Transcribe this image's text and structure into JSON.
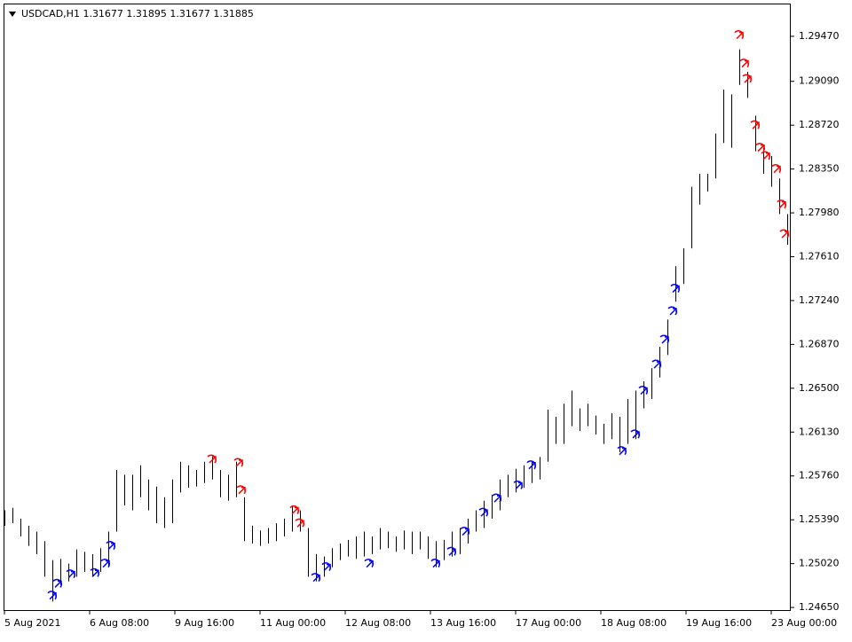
{
  "chart_data": {
    "type": "ohlc",
    "title": "USDCAD,H1  1.31677 1.31895 1.31677 1.31885",
    "color": "#000000",
    "xlim": [
      0,
      295
    ],
    "xticks": [
      {
        "value": 0,
        "label": "5 Aug 2021"
      },
      {
        "value": 32,
        "label": "6 Aug 08:00"
      },
      {
        "value": 64,
        "label": "9 Aug 16:00"
      },
      {
        "value": 96,
        "label": "11 Aug 00:00"
      },
      {
        "value": 128,
        "label": "12 Aug 08:00"
      },
      {
        "value": 160,
        "label": "13 Aug 16:00"
      },
      {
        "value": 192,
        "label": "17 Aug 00:00"
      },
      {
        "value": 224,
        "label": "18 Aug 08:00"
      },
      {
        "value": 256,
        "label": "19 Aug 16:00"
      },
      {
        "value": 288,
        "label": "23 Aug 00:00"
      }
    ],
    "ylim": [
      1.24628,
      1.29739
    ],
    "yticks": [
      {
        "value": 1.2465,
        "label": "1.24650"
      },
      {
        "value": 1.2502,
        "label": "1.25020"
      },
      {
        "value": 1.2539,
        "label": "1.25390"
      },
      {
        "value": 1.2576,
        "label": "1.25760"
      },
      {
        "value": 1.2613,
        "label": "1.26130"
      },
      {
        "value": 1.265,
        "label": "1.26500"
      },
      {
        "value": 1.2687,
        "label": "1.26870"
      },
      {
        "value": 1.2724,
        "label": "1.27240"
      },
      {
        "value": 1.2761,
        "label": "1.27610"
      },
      {
        "value": 1.2798,
        "label": "1.27980"
      },
      {
        "value": 1.2835,
        "label": "1.28350"
      },
      {
        "value": 1.2872,
        "label": "1.28720"
      },
      {
        "value": 1.2909,
        "label": "1.29090"
      },
      {
        "value": 1.2947,
        "label": "1.29470"
      }
    ],
    "x": [
      0,
      3,
      6,
      9,
      12,
      15,
      18,
      21,
      24,
      27,
      30,
      33,
      36,
      39,
      42,
      45,
      48,
      51,
      54,
      57,
      60,
      63,
      66,
      69,
      72,
      75,
      78,
      81,
      84,
      87,
      90,
      93,
      96,
      99,
      102,
      105,
      108,
      111,
      114,
      117,
      120,
      123,
      126,
      129,
      132,
      135,
      138,
      141,
      144,
      147,
      150,
      153,
      156,
      159,
      162,
      165,
      168,
      171,
      174,
      177,
      180,
      183,
      186,
      189,
      192,
      195,
      198,
      201,
      204,
      207,
      210,
      213,
      216,
      219,
      222,
      225,
      228,
      231,
      234,
      237,
      240,
      243,
      246,
      249,
      252,
      255,
      258,
      261,
      264,
      267,
      270,
      273,
      276,
      279,
      282,
      285,
      288,
      291,
      294
    ],
    "high": [
      1.2547,
      1.2549,
      1.254,
      1.2534,
      1.2529,
      1.2521,
      1.2505,
      1.2506,
      1.2502,
      1.2514,
      1.2512,
      1.251,
      1.2515,
      1.2529,
      1.2581,
      1.2577,
      1.2577,
      1.2585,
      1.2573,
      1.2567,
      1.2558,
      1.2573,
      1.2588,
      1.2585,
      1.2581,
      1.2588,
      1.2592,
      1.2581,
      1.2577,
      1.2588,
      1.2558,
      1.2534,
      1.253,
      1.2532,
      1.2536,
      1.254,
      1.2551,
      1.2547,
      1.2532,
      1.251,
      1.2508,
      1.2515,
      1.2519,
      1.2522,
      1.2525,
      1.2529,
      1.2525,
      1.2532,
      1.2529,
      1.2525,
      1.253,
      1.2529,
      1.2529,
      1.2525,
      1.2521,
      1.2522,
      1.2529,
      1.2532,
      1.254,
      1.2547,
      1.2555,
      1.256,
      1.2573,
      1.2577,
      1.2582,
      1.2585,
      1.2588,
      1.2592,
      1.2632,
      1.2626,
      1.2637,
      1.2648,
      1.2633,
      1.2637,
      1.2627,
      1.262,
      1.2629,
      1.2626,
      1.2641,
      1.2648,
      1.2656,
      1.2667,
      1.2685,
      1.2708,
      1.2753,
      1.2768,
      1.282,
      1.2831,
      1.2831,
      1.2865,
      1.2902,
      1.2898,
      1.2936,
      1.2917,
      1.288,
      1.2853,
      1.2846,
      1.2827,
      1.2797
    ],
    "low": [
      1.2534,
      1.2536,
      1.2525,
      1.2517,
      1.251,
      1.2491,
      1.247,
      1.2484,
      1.2487,
      1.2491,
      1.2495,
      1.2491,
      1.2495,
      1.2499,
      1.2529,
      1.2551,
      1.2547,
      1.2558,
      1.2547,
      1.2536,
      1.2532,
      1.2536,
      1.2562,
      1.2566,
      1.2567,
      1.257,
      1.2573,
      1.2558,
      1.2555,
      1.2558,
      1.2521,
      1.2519,
      1.2517,
      1.2519,
      1.2521,
      1.2525,
      1.2529,
      1.2529,
      1.2491,
      1.2487,
      1.2491,
      1.2499,
      1.2505,
      1.2508,
      1.2506,
      1.2508,
      1.251,
      1.2514,
      1.2515,
      1.2512,
      1.2514,
      1.251,
      1.2514,
      1.2506,
      1.2499,
      1.2505,
      1.2508,
      1.251,
      1.2519,
      1.2529,
      1.2532,
      1.254,
      1.2547,
      1.2558,
      1.2562,
      1.2566,
      1.257,
      1.2573,
      1.2588,
      1.2603,
      1.2603,
      1.2618,
      1.2614,
      1.2618,
      1.2611,
      1.2603,
      1.2607,
      1.2596,
      1.2603,
      1.2607,
      1.2633,
      1.2641,
      1.2659,
      1.2678,
      1.2723,
      1.2738,
      1.2768,
      1.2805,
      1.2816,
      1.2827,
      1.2857,
      1.2853,
      1.2906,
      1.2895,
      1.285,
      1.2831,
      1.282,
      1.2797,
      1.2771
    ],
    "sell_signals": {
      "color": "#ff0000",
      "x": [
        78,
        88,
        89,
        109,
        111,
        276,
        278,
        279,
        282,
        284,
        286,
        290,
        292,
        293
      ],
      "values": [
        1.259,
        1.2587,
        1.2564,
        1.2547,
        1.2536,
        1.2948,
        1.2924,
        1.2911,
        1.2872,
        1.2853,
        1.2846,
        1.2835,
        1.2805,
        1.278
      ]
    },
    "buy_signals": {
      "color": "#0000ff",
      "x": [
        18,
        20,
        25,
        34,
        38,
        40,
        117,
        121,
        137,
        162,
        168,
        173,
        180,
        185,
        193,
        198,
        232,
        237,
        240,
        245,
        248,
        251,
        252
      ],
      "values": [
        1.2475,
        1.2485,
        1.2493,
        1.2494,
        1.2502,
        1.2517,
        1.249,
        1.2499,
        1.2502,
        1.2502,
        1.2512,
        1.2529,
        1.2545,
        1.2557,
        1.2568,
        1.2585,
        1.2597,
        1.2611,
        1.2648,
        1.267,
        1.2691,
        1.2715,
        1.2734
      ]
    }
  }
}
